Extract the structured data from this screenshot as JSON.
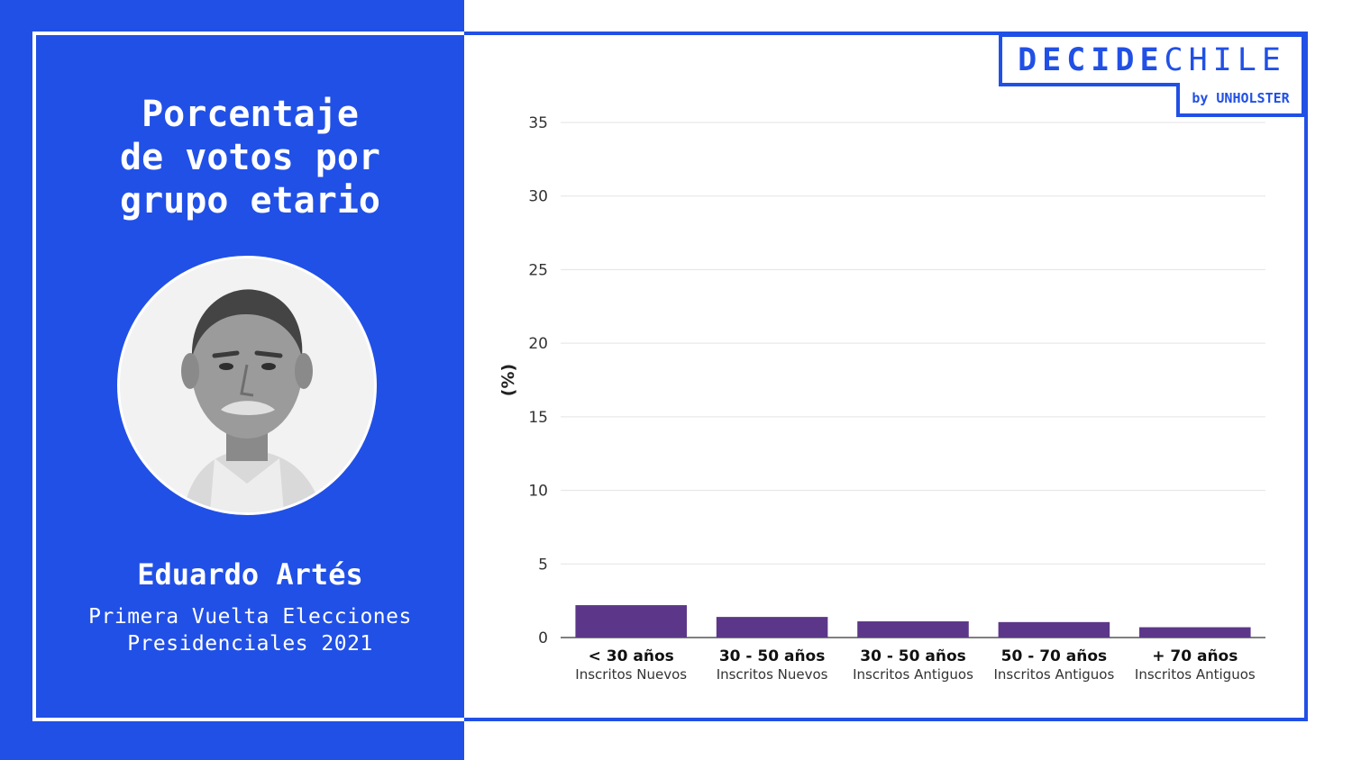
{
  "title": "Porcentaje\nde votos por\ngrupo etario",
  "candidate": {
    "name": "Eduardo Artés",
    "election_line1": "Primera Vuelta Elecciones",
    "election_line2": "Presidenciales 2021"
  },
  "logo": {
    "brand_bold": "DECIDE",
    "brand_light": "CHILE",
    "byline": "by UNHOLSTER"
  },
  "colors": {
    "panel": "#2150e6",
    "bar": "#5c3789",
    "grid": "#e3e3e3",
    "axis": "#555555"
  },
  "chart_data": {
    "type": "bar",
    "categories": [
      "< 30 años",
      "30 - 50 años",
      "30 - 50 años",
      "50 - 70 años",
      "+ 70 años"
    ],
    "subcategories": [
      "Inscritos Nuevos",
      "Inscritos Nuevos",
      "Inscritos Antiguos",
      "Inscritos Antiguos",
      "Inscritos Antiguos"
    ],
    "values": [
      2.2,
      1.4,
      1.1,
      1.05,
      0.7
    ],
    "ylabel": "(%)",
    "ylim": [
      0,
      35
    ],
    "yticks": [
      0,
      5,
      10,
      15,
      20,
      25,
      30,
      35
    ],
    "grid": true
  }
}
